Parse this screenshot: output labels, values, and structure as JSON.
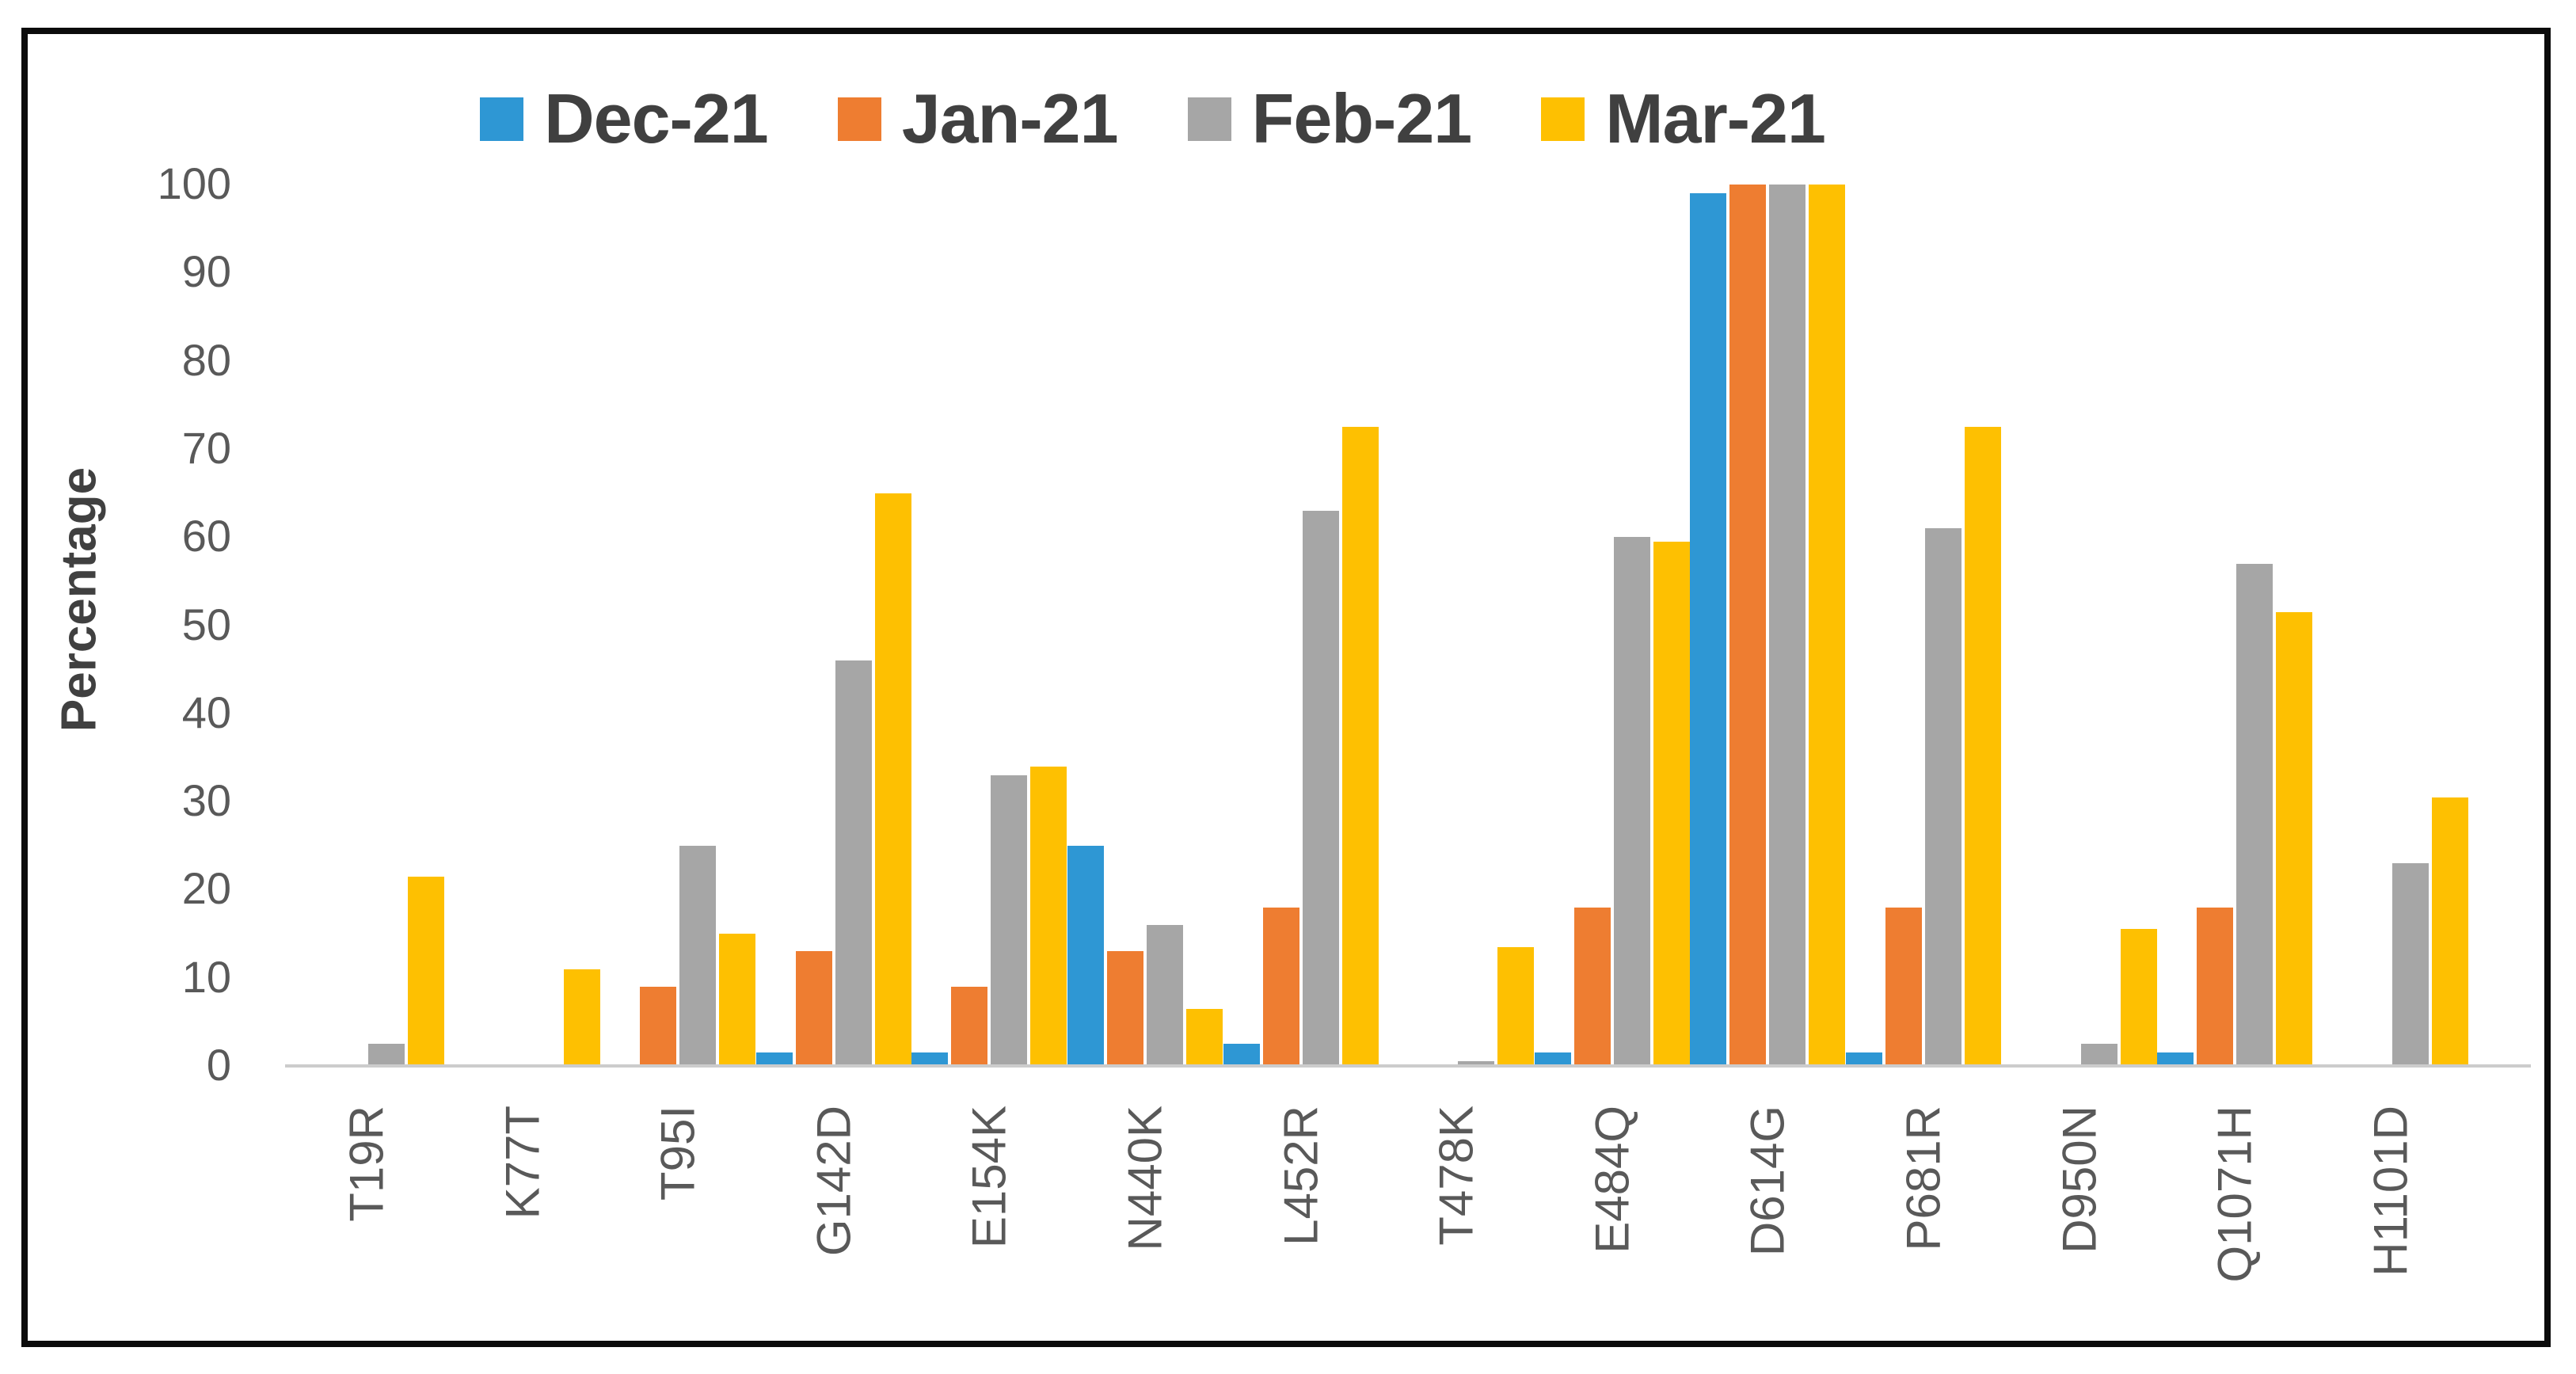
{
  "figure": {
    "border_color": "#0b0b0b",
    "background_color": "#ffffff"
  },
  "chart_data": {
    "type": "bar",
    "title": "",
    "xlabel": "",
    "ylabel": "Percentage",
    "grid": false,
    "legend_position": "top",
    "categories": [
      "T19R",
      "K77T",
      "T95I",
      "G142D",
      "E154K",
      "N440K",
      "L452R",
      "T478K",
      "E484Q",
      "D614G",
      "P681R",
      "D950N",
      "Q1071H",
      "H1101D"
    ],
    "series": [
      {
        "name": "Dec-21",
        "color": "#2e97d4",
        "values": [
          0,
          0,
          0,
          1.5,
          1.5,
          25,
          2.5,
          0,
          1.5,
          99,
          1.5,
          0,
          1.5,
          0
        ]
      },
      {
        "name": "Jan-21",
        "color": "#ee7d31",
        "values": [
          0,
          0,
          9,
          13,
          9,
          13,
          18,
          0,
          18,
          100,
          18,
          0,
          18,
          0
        ]
      },
      {
        "name": "Feb-21",
        "color": "#a6a6a6",
        "values": [
          2.5,
          0,
          25,
          46,
          33,
          16,
          63,
          0.5,
          60,
          100,
          61,
          2.5,
          57,
          23
        ]
      },
      {
        "name": "Mar-21",
        "color": "#fec001",
        "values": [
          21.5,
          11,
          15,
          65,
          34,
          6.5,
          72.5,
          13.5,
          59.5,
          100,
          72.5,
          15.5,
          51.5,
          30.5
        ]
      }
    ],
    "y_axis": {
      "min": 0,
      "max": 100,
      "step": 10,
      "ticks": [
        0,
        10,
        20,
        30,
        40,
        50,
        60,
        70,
        80,
        90,
        100
      ]
    }
  }
}
